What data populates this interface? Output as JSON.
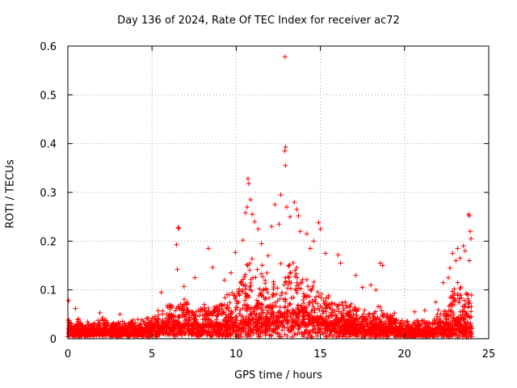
{
  "chart_data": {
    "type": "scatter",
    "title": "Day 136 of 2024, Rate Of TEC Index for receiver ac72",
    "xlabel": "GPS time / hours",
    "ylabel": "ROTI / TECUs",
    "xlim": [
      0,
      25
    ],
    "ylim": [
      0,
      0.6
    ],
    "xticks": [
      "0",
      "5",
      "10",
      "15",
      "20",
      "25"
    ],
    "yticks": [
      "0",
      "0.1",
      "0.2",
      "0.3",
      "0.4",
      "0.5",
      "0.6"
    ],
    "grid": true,
    "marker": "plus",
    "series": [
      {
        "color": "#ff0000",
        "envelope_x": [
          0,
          0.5,
          1,
          1.5,
          2,
          2.5,
          3,
          3.5,
          4,
          4.5,
          5,
          5.5,
          6,
          6.5,
          7,
          7.5,
          8,
          8.5,
          9,
          9.5,
          10,
          10.5,
          11,
          11.5,
          12,
          12.5,
          13,
          13.5,
          14,
          14.5,
          15,
          15.5,
          16,
          16.5,
          17,
          17.5,
          18,
          18.5,
          19,
          19.5,
          20,
          20.5,
          21,
          21.5,
          22,
          22.5,
          23,
          23.5,
          24
        ],
        "envelope_typical_max": [
          0.045,
          0.045,
          0.035,
          0.04,
          0.045,
          0.04,
          0.035,
          0.035,
          0.04,
          0.045,
          0.05,
          0.06,
          0.07,
          0.08,
          0.08,
          0.07,
          0.075,
          0.08,
          0.08,
          0.1,
          0.11,
          0.16,
          0.17,
          0.15,
          0.13,
          0.15,
          0.16,
          0.16,
          0.14,
          0.12,
          0.1,
          0.09,
          0.08,
          0.08,
          0.07,
          0.06,
          0.06,
          0.07,
          0.06,
          0.05,
          0.035,
          0.04,
          0.04,
          0.04,
          0.06,
          0.08,
          0.11,
          0.12,
          0.1
        ],
        "envelope_baseline": [
          0.015,
          0.018,
          0.015,
          0.015,
          0.018,
          0.015,
          0.015,
          0.015,
          0.015,
          0.018,
          0.02,
          0.022,
          0.025,
          0.028,
          0.028,
          0.025,
          0.025,
          0.025,
          0.025,
          0.028,
          0.03,
          0.035,
          0.04,
          0.04,
          0.04,
          0.045,
          0.05,
          0.05,
          0.045,
          0.04,
          0.035,
          0.03,
          0.028,
          0.028,
          0.025,
          0.025,
          0.022,
          0.025,
          0.022,
          0.02,
          0.015,
          0.015,
          0.015,
          0.015,
          0.018,
          0.02,
          0.025,
          0.025,
          0.02
        ],
        "outliers": [
          [
            0.05,
            0.078
          ],
          [
            0.45,
            0.062
          ],
          [
            1.9,
            0.053
          ],
          [
            3.1,
            0.05
          ],
          [
            5.55,
            0.095
          ],
          [
            6.45,
            0.193
          ],
          [
            6.55,
            0.228
          ],
          [
            6.6,
            0.226
          ],
          [
            6.5,
            0.142
          ],
          [
            6.9,
            0.107
          ],
          [
            7.55,
            0.125
          ],
          [
            8.35,
            0.185
          ],
          [
            8.6,
            0.146
          ],
          [
            9.3,
            0.12
          ],
          [
            9.7,
            0.135
          ],
          [
            9.95,
            0.177
          ],
          [
            10.4,
            0.202
          ],
          [
            10.55,
            0.258
          ],
          [
            10.65,
            0.27
          ],
          [
            10.7,
            0.328
          ],
          [
            10.75,
            0.318
          ],
          [
            10.85,
            0.285
          ],
          [
            10.95,
            0.255
          ],
          [
            11.1,
            0.24
          ],
          [
            11.3,
            0.225
          ],
          [
            11.5,
            0.195
          ],
          [
            11.9,
            0.17
          ],
          [
            12.1,
            0.23
          ],
          [
            12.3,
            0.275
          ],
          [
            12.55,
            0.235
          ],
          [
            12.65,
            0.295
          ],
          [
            12.9,
            0.578
          ],
          [
            12.93,
            0.393
          ],
          [
            12.88,
            0.385
          ],
          [
            12.92,
            0.355
          ],
          [
            13.0,
            0.27
          ],
          [
            13.2,
            0.25
          ],
          [
            13.45,
            0.28
          ],
          [
            13.6,
            0.265
          ],
          [
            13.7,
            0.252
          ],
          [
            13.8,
            0.22
          ],
          [
            14.2,
            0.215
          ],
          [
            14.4,
            0.185
          ],
          [
            14.6,
            0.2
          ],
          [
            14.9,
            0.238
          ],
          [
            15.0,
            0.225
          ],
          [
            15.3,
            0.175
          ],
          [
            16.05,
            0.172
          ],
          [
            16.2,
            0.155
          ],
          [
            17.1,
            0.13
          ],
          [
            17.5,
            0.105
          ],
          [
            18.0,
            0.11
          ],
          [
            18.3,
            0.1
          ],
          [
            18.55,
            0.155
          ],
          [
            18.7,
            0.15
          ],
          [
            20.6,
            0.055
          ],
          [
            21.2,
            0.058
          ],
          [
            21.85,
            0.075
          ],
          [
            22.3,
            0.115
          ],
          [
            22.6,
            0.125
          ],
          [
            22.7,
            0.145
          ],
          [
            22.85,
            0.175
          ],
          [
            23.05,
            0.16
          ],
          [
            23.15,
            0.185
          ],
          [
            23.3,
            0.165
          ],
          [
            23.5,
            0.19
          ],
          [
            23.6,
            0.18
          ],
          [
            23.8,
            0.255
          ],
          [
            23.85,
            0.252
          ],
          [
            23.9,
            0.22
          ],
          [
            23.95,
            0.205
          ],
          [
            23.85,
            0.16
          ]
        ]
      }
    ]
  }
}
